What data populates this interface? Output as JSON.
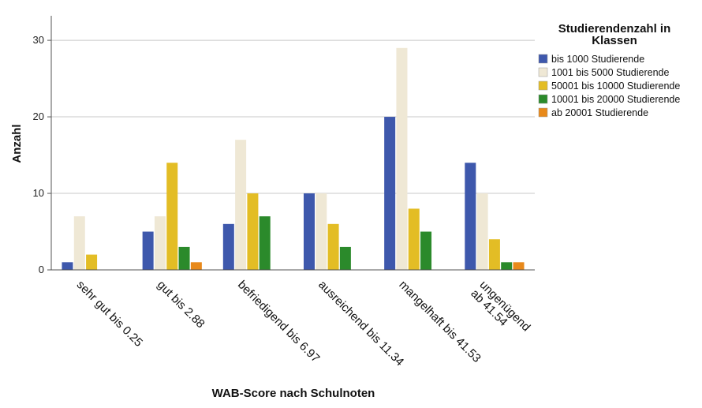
{
  "chart_data": {
    "type": "bar",
    "xlabel": "WAB-Score nach Schulnoten",
    "ylabel": "Anzahl",
    "ylim": [
      0,
      33
    ],
    "yticks": [
      0,
      10,
      20,
      30
    ],
    "grid": true,
    "legend_position": "top-right",
    "legend_title_lines": [
      "Studierendenzahl in",
      "Klassen"
    ],
    "categories": [
      [
        "sehr gut bis 0.25"
      ],
      [
        "gut bis 2.88"
      ],
      [
        "befriedigend bis 6.97"
      ],
      [
        "ausreichend bis 11.34"
      ],
      [
        "mangelhaft bis 41.53"
      ],
      [
        "ungenügend",
        "ab 41.54"
      ]
    ],
    "series": [
      {
        "name": "bis 1000 Studierende",
        "color": "#3e58ac",
        "values": [
          1,
          5,
          6,
          10,
          20,
          14
        ]
      },
      {
        "name": "1001 bis 5000 Studierende",
        "color": "#efe8d5",
        "values": [
          7,
          7,
          17,
          10,
          29,
          10
        ]
      },
      {
        "name": "50001 bis 10000 Studierende",
        "color": "#e3bd25",
        "values": [
          2,
          14,
          10,
          6,
          8,
          4
        ]
      },
      {
        "name": "10001 bis 20000 Studierende",
        "color": "#2b8a2b",
        "values": [
          0,
          3,
          7,
          3,
          5,
          1
        ]
      },
      {
        "name": "ab 20001 Studierende",
        "color": "#e8891a",
        "values": [
          0,
          1,
          0,
          0,
          0,
          1
        ]
      }
    ]
  }
}
